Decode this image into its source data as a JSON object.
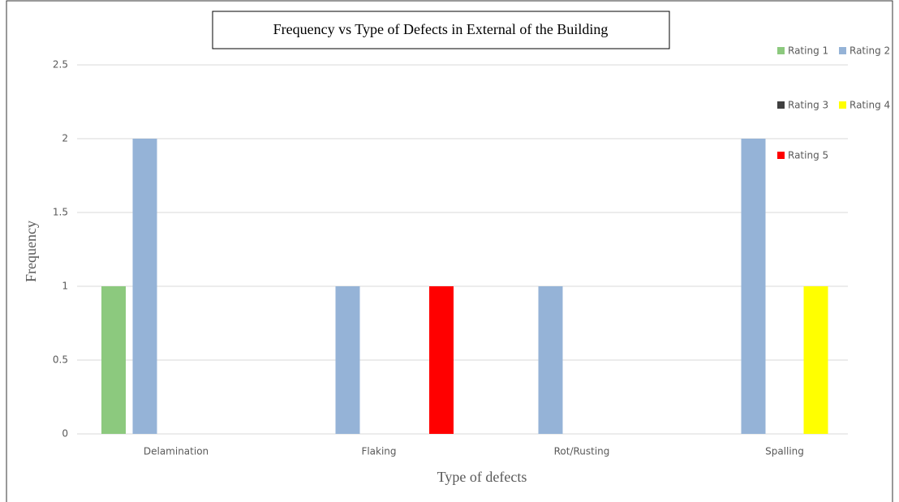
{
  "chart_data": {
    "type": "bar",
    "title": "Frequency vs Type of Defects in External of the Building",
    "x_label": "Type of defects",
    "y_label": "Frequency",
    "categories": [
      "Delamination",
      "Flaking",
      "Rot/Rusting",
      "Spalling"
    ],
    "series": [
      {
        "name": "Rating 1",
        "color": "#8cc97e",
        "values": [
          1,
          0,
          0,
          0
        ]
      },
      {
        "name": "Rating 2",
        "color": "#95b3d7",
        "values": [
          2,
          1,
          1,
          2
        ]
      },
      {
        "name": "Rating 3",
        "color": "#404040",
        "values": [
          0,
          0,
          0,
          0
        ]
      },
      {
        "name": "Rating 4",
        "color": "#ffff00",
        "values": [
          0,
          0,
          0,
          1
        ]
      },
      {
        "name": "Rating 5",
        "color": "#ff0000",
        "values": [
          0,
          1,
          0,
          0
        ]
      }
    ],
    "ylim": [
      0,
      2.5
    ],
    "yticks": [
      0,
      0.5,
      1,
      1.5,
      2,
      2.5
    ],
    "grid": true
  }
}
